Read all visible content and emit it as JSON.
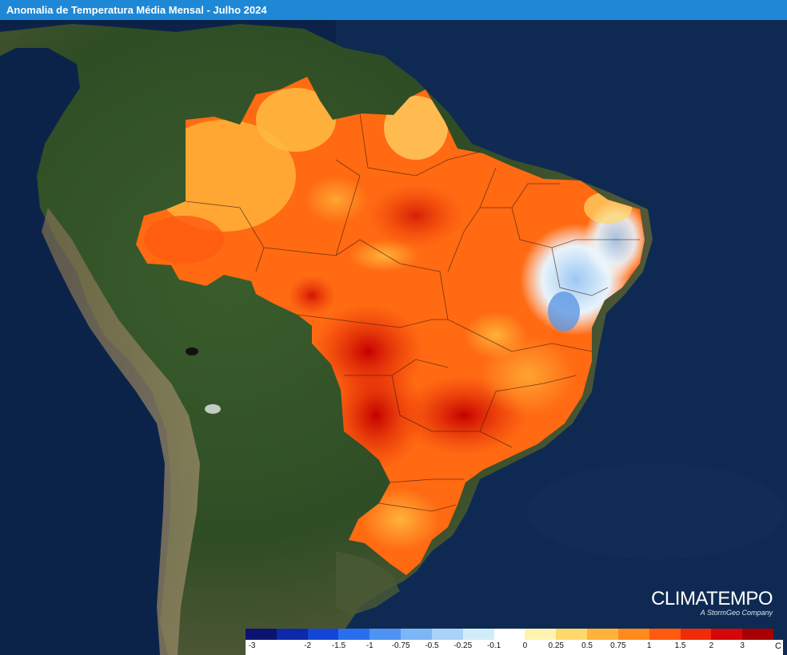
{
  "title": "Anomalia de Temperatura Média Mensal - Julho 2024",
  "brand": {
    "name": "CLIMATEMPO",
    "subtitle": "A StormGeo Company"
  },
  "legend": {
    "unit": "C",
    "labels": [
      "-3",
      "-2",
      "-1.5",
      "-1",
      "-0.75",
      "-0.5",
      "-0.25",
      "-0.1",
      "0",
      "0.25",
      "0.5",
      "0.75",
      "1",
      "1.5",
      "2",
      "3"
    ],
    "colors": [
      "#0a1470",
      "#0c2aa8",
      "#1346d6",
      "#2a6ef0",
      "#4f93f2",
      "#7db6f4",
      "#a9d3f6",
      "#d2ecfa",
      "#ffffff",
      "#fff3b0",
      "#ffd86a",
      "#ffb33a",
      "#ff8a1c",
      "#ff5a10",
      "#f02c08",
      "#d40808",
      "#a80000"
    ]
  },
  "colors": {
    "ocean": "#0e2547",
    "land": "#3b5a2a",
    "title_bar": "#1e88d6"
  }
}
